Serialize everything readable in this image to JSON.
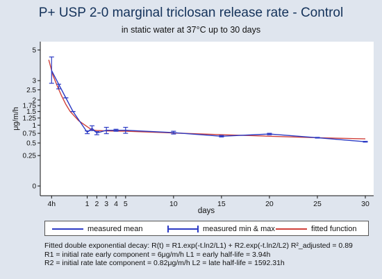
{
  "chart_data": {
    "type": "line",
    "title": "P+ USP 2-0   marginal triclosan release rate - Control",
    "subtitle": "in static water at 37°C up to 30 days",
    "xlabel": "days",
    "ylabel": "μg/m/h",
    "x_ticks": [
      {
        "value": 0.167,
        "label": "4h"
      },
      {
        "value": 1,
        "label": "1"
      },
      {
        "value": 2,
        "label": "2"
      },
      {
        "value": 3,
        "label": "3"
      },
      {
        "value": 4,
        "label": "4"
      },
      {
        "value": 5,
        "label": "5"
      },
      {
        "value": 10,
        "label": "10"
      },
      {
        "value": 15,
        "label": "15"
      },
      {
        "value": 20,
        "label": "20"
      },
      {
        "value": 25,
        "label": "25"
      },
      {
        "value": 30,
        "label": "30"
      }
    ],
    "y_ticks": [
      {
        "value": 0,
        "label": "0"
      },
      {
        "value": 0.25,
        "label": "0.25"
      },
      {
        "value": 0.5,
        "label": "0.5"
      },
      {
        "value": 0.75,
        "label": "0.75"
      },
      {
        "value": 1,
        "label": "1"
      },
      {
        "value": 1.25,
        "label": "1.25"
      },
      {
        "value": 1.5,
        "label": "1.5"
      },
      {
        "value": 1.75,
        "label": "1.75"
      },
      {
        "value": 2,
        "label": "2"
      },
      {
        "value": 2.5,
        "label": "2.5"
      },
      {
        "value": 3,
        "label": "3"
      },
      {
        "value": 5,
        "label": "5"
      }
    ],
    "xlim": [
      -0.5,
      30.5
    ],
    "ylim": [
      -0.3,
      5.4
    ],
    "y_scale": "square-root",
    "grid": false,
    "legend_position": "bottom",
    "series": [
      {
        "name": "measured mean",
        "color": "#2b3ac4",
        "x": [
          0.167,
          0.333,
          0.5,
          0.667,
          1,
          1.5,
          2,
          3,
          4,
          5,
          10,
          15,
          20,
          25,
          30
        ],
        "y": [
          3.6,
          2.8,
          2.1,
          1.5,
          0.78,
          0.9,
          0.76,
          0.84,
          0.84,
          0.84,
          0.77,
          0.67,
          0.73,
          0.63,
          0.53
        ]
      },
      {
        "name": "measured min & max",
        "color": "#2b3ac4",
        "x": [
          0.167,
          0.333,
          0.5,
          0.667,
          1,
          1.5,
          2,
          3,
          4,
          5,
          10,
          15,
          20,
          25,
          30
        ],
        "min": [
          2.85,
          2.55,
          2.1,
          1.5,
          0.74,
          0.83,
          0.71,
          0.74,
          0.81,
          0.75,
          0.73,
          0.65,
          0.71,
          0.62,
          0.52
        ],
        "max": [
          4.5,
          2.8,
          2.1,
          1.5,
          0.82,
          0.98,
          0.8,
          0.93,
          0.87,
          0.93,
          0.81,
          0.69,
          0.75,
          0.64,
          0.54
        ]
      },
      {
        "name": "fitted function",
        "color": "#d0403a",
        "x": [
          0.1,
          0.2,
          0.3,
          0.4,
          0.5,
          0.6,
          0.8,
          1,
          1.5,
          2,
          3,
          4,
          5,
          7,
          10,
          15,
          20,
          25,
          30
        ],
        "y": [
          4.3,
          3.3,
          2.7,
          2.2,
          1.8,
          1.5,
          1.15,
          0.95,
          0.85,
          0.83,
          0.82,
          0.815,
          0.81,
          0.79,
          0.76,
          0.71,
          0.67,
          0.63,
          0.6
        ]
      }
    ]
  },
  "legend": {
    "mean_label": "measured mean",
    "range_label": "measured min & max",
    "fit_label": "fitted function"
  },
  "notes": {
    "line1": "Fitted double exponential decay: R(t) = R1.exp(-t.ln2/L1) + R2.exp(-t.ln2/L2) R²_adjusted = 0.89",
    "line2": "R1 = initial rate early component = 6μg/m/h  L1 = early half-life = 3.94h",
    "line3": "R2 = initial rate late component = 0.82μg/m/h  L2 = late half-life = 1592.31h"
  }
}
